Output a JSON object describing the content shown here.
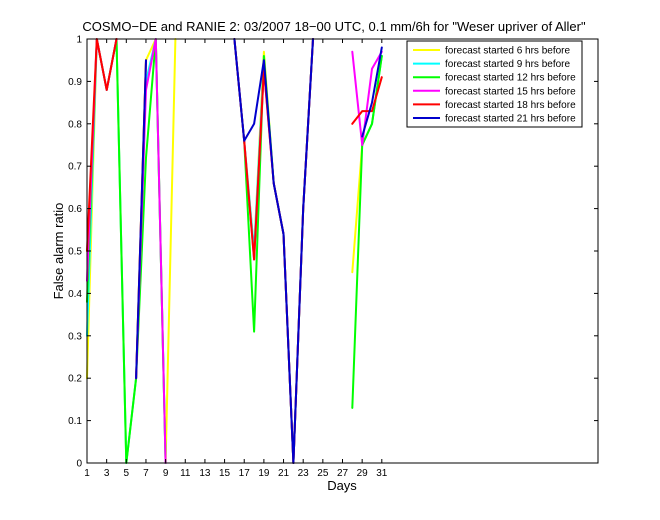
{
  "chart_data": {
    "type": "line",
    "title": "COSMO−DE and RANIE 2: 03/2007 18−00 UTC, 0.1 mm/6h for \"Weser upriver of Aller\"",
    "xlabel": "Days",
    "ylabel": "False alarm ratio",
    "xlim": [
      1,
      53
    ],
    "ylim": [
      0,
      1
    ],
    "xticks": [
      1,
      3,
      5,
      7,
      9,
      11,
      13,
      15,
      17,
      19,
      21,
      23,
      25,
      27,
      29,
      31
    ],
    "yticks": [
      0,
      0.1,
      0.2,
      0.3,
      0.4,
      0.5,
      0.6,
      0.7,
      0.8,
      0.9,
      1
    ],
    "ytick_labels": [
      "0",
      "0.1",
      "0.2",
      "0.3",
      "0.4",
      "0.5",
      "0.6",
      "0.7",
      "0.8",
      "0.9",
      "1"
    ],
    "legend_position": "top-right",
    "series": [
      {
        "name": "forecast started 6 hrs before",
        "color": "#ffff00",
        "points": [
          [
            1,
            0.2
          ],
          [
            2,
            1.0
          ],
          [
            3,
            0.88
          ],
          [
            4,
            1.0
          ],
          [
            5,
            0.0
          ],
          [
            6,
            0.2
          ],
          [
            7,
            0.95
          ],
          [
            8,
            1.0
          ],
          [
            9,
            0.0
          ],
          [
            10,
            1.0
          ],
          [
            16,
            1.0
          ],
          [
            17,
            0.76
          ],
          [
            18,
            0.5
          ],
          [
            19,
            0.97
          ],
          [
            20,
            0.66
          ],
          [
            21,
            0.54
          ],
          [
            22,
            0.0
          ],
          [
            23,
            0.6
          ],
          [
            24,
            1.0
          ],
          [
            28,
            0.45
          ],
          [
            29,
            0.75
          ],
          [
            30,
            0.8
          ],
          [
            31,
            0.96
          ]
        ]
      },
      {
        "name": "forecast started 9 hrs before",
        "color": "#00ffff",
        "points": [
          [
            1,
            0.3
          ],
          [
            2,
            1.0
          ],
          [
            3,
            0.88
          ],
          [
            4,
            1.0
          ],
          [
            5,
            0.0
          ],
          [
            6,
            0.2
          ],
          [
            7,
            0.9
          ],
          [
            8,
            1.0
          ],
          [
            9,
            0.0
          ],
          [
            16,
            1.0
          ],
          [
            17,
            0.76
          ],
          [
            18,
            0.5
          ],
          [
            19,
            0.95
          ],
          [
            20,
            0.66
          ],
          [
            21,
            0.54
          ],
          [
            22,
            0.0
          ],
          [
            23,
            0.6
          ],
          [
            24,
            1.0
          ],
          [
            29,
            0.75
          ],
          [
            30,
            0.8
          ],
          [
            31,
            0.96
          ]
        ]
      },
      {
        "name": "forecast started 12 hrs before",
        "color": "#00ff00",
        "points": [
          [
            1,
            0.38
          ],
          [
            2,
            1.0
          ],
          [
            3,
            0.88
          ],
          [
            4,
            1.0
          ],
          [
            5,
            0.0
          ],
          [
            6,
            0.2
          ],
          [
            7,
            0.72
          ],
          [
            8,
            1.0
          ],
          [
            9,
            0.0
          ],
          [
            16,
            1.0
          ],
          [
            17,
            0.76
          ],
          [
            18,
            0.31
          ],
          [
            19,
            0.96
          ],
          [
            20,
            0.66
          ],
          [
            21,
            0.54
          ],
          [
            22,
            0.0
          ],
          [
            23,
            0.6
          ],
          [
            24,
            1.0
          ],
          [
            28,
            0.13
          ],
          [
            29,
            0.75
          ],
          [
            30,
            0.8
          ],
          [
            31,
            0.96
          ]
        ]
      },
      {
        "name": "forecast started 15 hrs before",
        "color": "#ff00ff",
        "points": [
          [
            1,
            0.43
          ],
          [
            2,
            1.0
          ],
          [
            3,
            0.88
          ],
          [
            4,
            1.0
          ],
          [
            6,
            0.2
          ],
          [
            7,
            0.88
          ],
          [
            8,
            1.0
          ],
          [
            9,
            0.0
          ],
          [
            16,
            1.0
          ],
          [
            17,
            0.76
          ],
          [
            18,
            0.48
          ],
          [
            19,
            0.93
          ],
          [
            20,
            0.66
          ],
          [
            21,
            0.54
          ],
          [
            22,
            0.0
          ],
          [
            23,
            0.6
          ],
          [
            24,
            1.0
          ],
          [
            28,
            0.97
          ],
          [
            29,
            0.75
          ],
          [
            30,
            0.93
          ],
          [
            31,
            0.97
          ]
        ]
      },
      {
        "name": "forecast started 18 hrs before",
        "color": "#ff0000",
        "points": [
          [
            1,
            0.5
          ],
          [
            2,
            1.0
          ],
          [
            3,
            0.88
          ],
          [
            4,
            1.0
          ],
          [
            6,
            0.2
          ],
          [
            7,
            0.95
          ],
          [
            16,
            1.0
          ],
          [
            17,
            0.76
          ],
          [
            18,
            0.48
          ],
          [
            19,
            0.93
          ],
          [
            20,
            0.66
          ],
          [
            21,
            0.54
          ],
          [
            22,
            0.0
          ],
          [
            23,
            0.6
          ],
          [
            24,
            1.0
          ],
          [
            28,
            0.8
          ],
          [
            29,
            0.83
          ],
          [
            30,
            0.83
          ],
          [
            31,
            0.91
          ]
        ]
      },
      {
        "name": "forecast started 21 hrs before",
        "color": "#0000cc",
        "points": [
          [
            6,
            0.2
          ],
          [
            7,
            0.95
          ],
          [
            16,
            1.0
          ],
          [
            17,
            0.76
          ],
          [
            18,
            0.8
          ],
          [
            19,
            0.95
          ],
          [
            20,
            0.66
          ],
          [
            21,
            0.54
          ],
          [
            22,
            0.0
          ],
          [
            23,
            0.6
          ],
          [
            24,
            1.0
          ],
          [
            29,
            0.77
          ],
          [
            30,
            0.85
          ],
          [
            31,
            0.98
          ]
        ]
      }
    ]
  }
}
